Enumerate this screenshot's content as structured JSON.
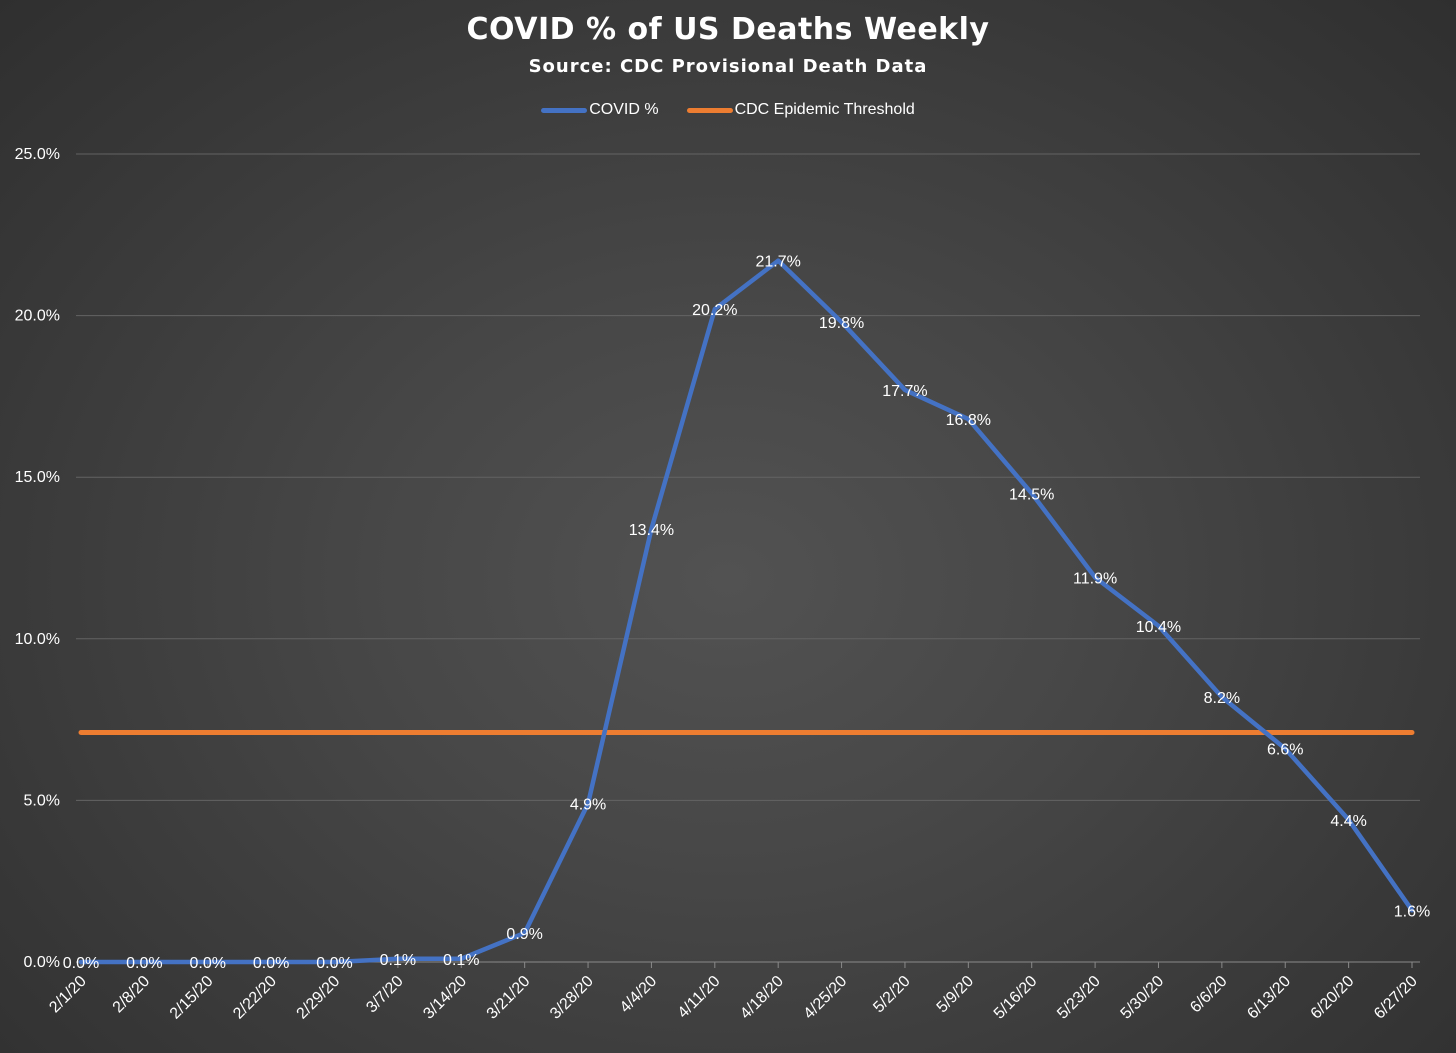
{
  "title": "COVID % of US Deaths Weekly",
  "subtitle": "Source: CDC Provisional Death Data",
  "colors": {
    "covid": "#4472c4",
    "threshold": "#ed7d31",
    "grid": "#636363",
    "text": "#ffffff"
  },
  "chart_data": {
    "type": "line",
    "title": "COVID % of US Deaths Weekly",
    "subtitle": "Source: CDC Provisional Death Data",
    "xlabel": "",
    "ylabel": "",
    "ylim": [
      0,
      25
    ],
    "y_ticks": [
      "0.0%",
      "5.0%",
      "10.0%",
      "15.0%",
      "20.0%",
      "25.0%"
    ],
    "y_tick_values": [
      0,
      5,
      10,
      15,
      20,
      25
    ],
    "grid": true,
    "legend_position": "top-center",
    "categories": [
      "2/1/20",
      "2/8/20",
      "2/15/20",
      "2/22/20",
      "2/29/20",
      "3/7/20",
      "3/14/20",
      "3/21/20",
      "3/28/20",
      "4/4/20",
      "4/11/20",
      "4/18/20",
      "4/25/20",
      "5/2/20",
      "5/9/20",
      "5/16/20",
      "5/23/20",
      "5/30/20",
      "6/6/20",
      "6/13/20",
      "6/20/20",
      "6/27/20"
    ],
    "series": [
      {
        "name": "COVID %",
        "color": "#4472c4",
        "values": [
          0.0,
          0.0,
          0.0,
          0.0,
          0.0,
          0.1,
          0.1,
          0.9,
          4.9,
          13.4,
          20.2,
          21.7,
          19.8,
          17.7,
          16.8,
          14.5,
          11.9,
          10.4,
          8.2,
          6.6,
          4.4,
          1.6
        ],
        "data_labels": [
          "0.0%",
          "0.0%",
          "0.0%",
          "0.0%",
          "0.0%",
          "0.1%",
          "0.1%",
          "0.9%",
          "4.9%",
          "13.4%",
          "20.2%",
          "21.7%",
          "19.8%",
          "17.7%",
          "16.8%",
          "14.5%",
          "11.9%",
          "10.4%",
          "8.2%",
          "6.6%",
          "4.4%",
          "1.6%"
        ]
      },
      {
        "name": "CDC Epidemic Threshold",
        "color": "#ed7d31",
        "values": [
          7.1,
          7.1,
          7.1,
          7.1,
          7.1,
          7.1,
          7.1,
          7.1,
          7.1,
          7.1,
          7.1,
          7.1,
          7.1,
          7.1,
          7.1,
          7.1,
          7.1,
          7.1,
          7.1,
          7.1,
          7.1,
          7.1
        ]
      }
    ]
  }
}
